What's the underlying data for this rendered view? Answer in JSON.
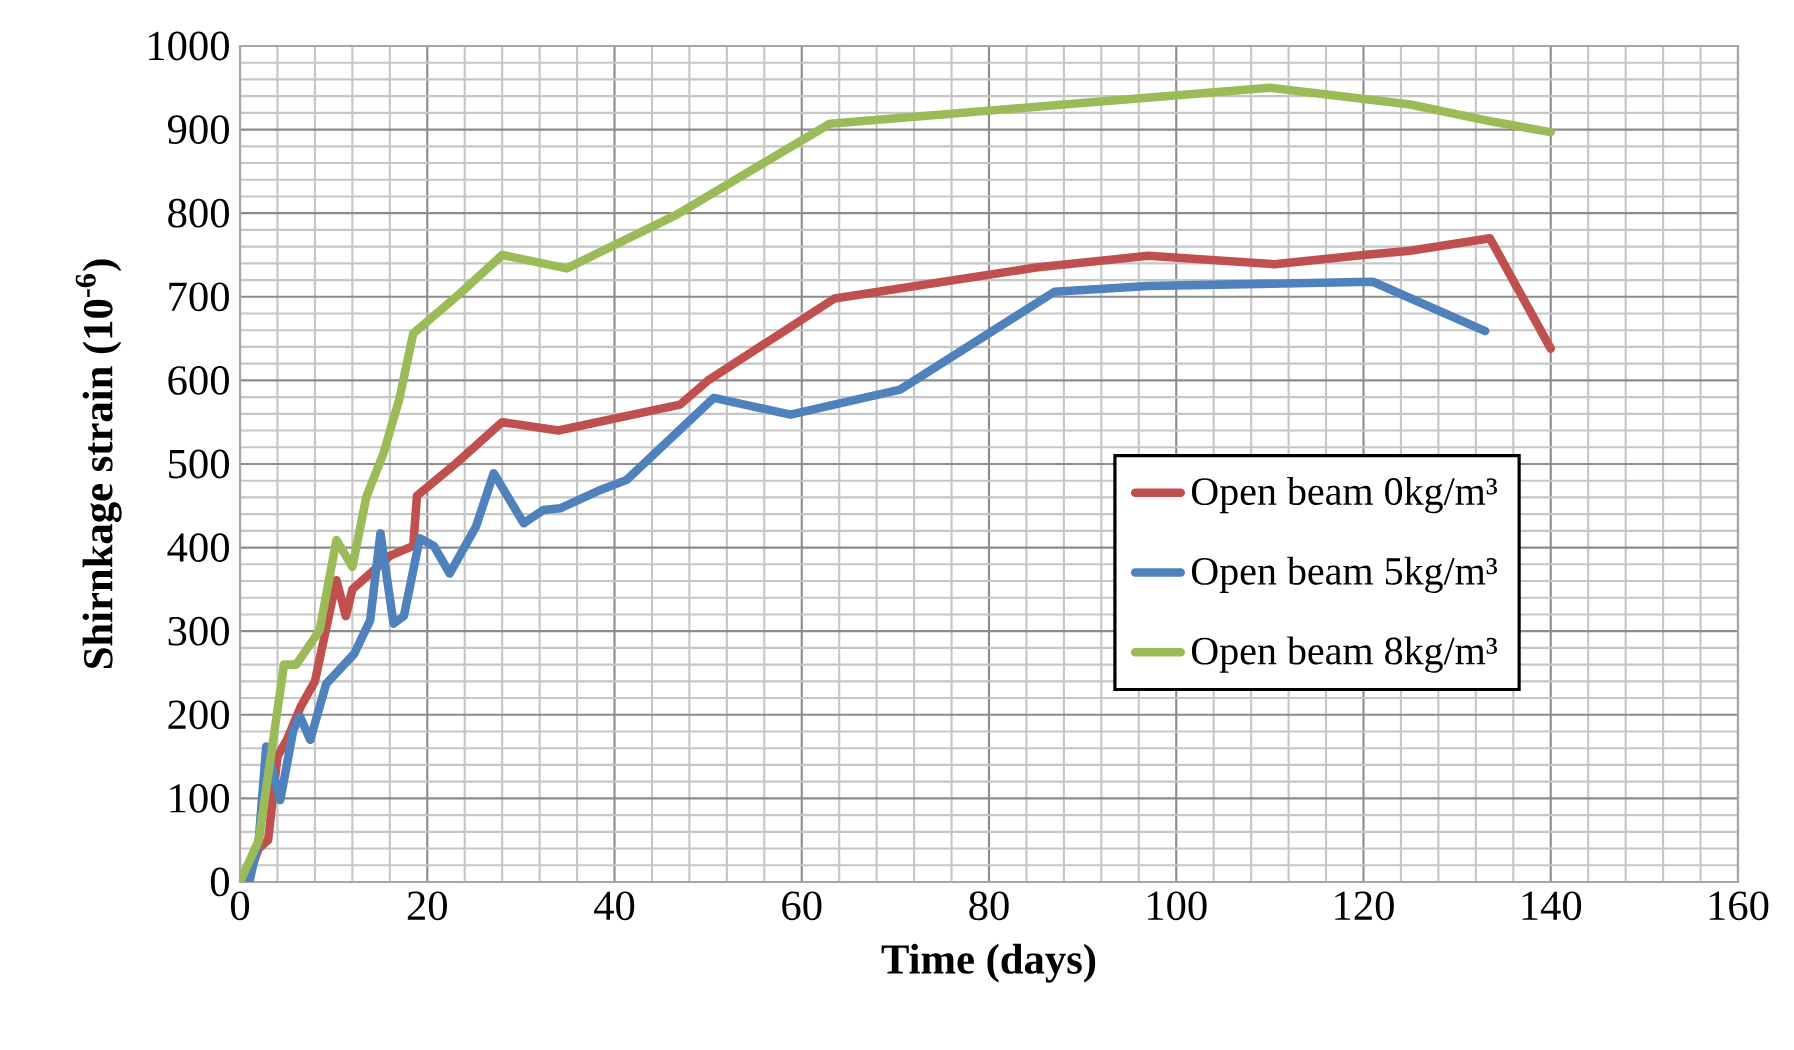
{
  "chart_data": {
    "type": "line",
    "xlabel": "Time (days)",
    "ylabel": "Shirnkage strain (10$^{-6}$)",
    "xlim": [
      0,
      160
    ],
    "xticks": [
      0,
      20,
      40,
      60,
      80,
      100,
      120,
      140,
      160
    ],
    "ylim": [
      0,
      1000
    ],
    "yticks": [
      0,
      100,
      200,
      300,
      400,
      500,
      600,
      700,
      800,
      900,
      1000
    ],
    "grid": true,
    "legend": "right",
    "line_style": "solid",
    "series": [
      {
        "name": "Open beam 0kg/m³",
        "color": "#c0504d",
        "x": [
          0,
          1,
          2,
          3,
          4,
          5,
          6.5,
          8,
          10.3,
          11.3,
          12,
          14,
          16,
          18.5,
          18.9,
          23,
          28,
          34,
          47,
          50,
          63.5,
          85,
          97,
          110.5,
          120,
          125,
          133.5,
          140
        ],
        "values": [
          0,
          10,
          40,
          50,
          150,
          170,
          210,
          240,
          361,
          318,
          350,
          370,
          390,
          402,
          462,
          500,
          550,
          540,
          571,
          600,
          698,
          735,
          749,
          739,
          750,
          755,
          770,
          638
        ]
      },
      {
        "name": "Open beam 5kg/m³",
        "color": "#4f81bd",
        "x": [
          0,
          1,
          2,
          2.8,
          4.3,
          5.7,
          6.4,
          7.5,
          9.2,
          12.2,
          13.9,
          15,
          16.4,
          17.5,
          19.2,
          20.7,
          22.4,
          25.2,
          27.1,
          30.3,
          32.4,
          34.2,
          38.5,
          41.3,
          50.6,
          58.8,
          70.5,
          87,
          97,
          121,
          133
        ],
        "values": [
          0,
          0,
          50,
          162,
          98,
          182,
          198,
          170,
          237,
          273,
          313,
          417,
          309,
          318,
          411,
          402,
          369,
          425,
          489,
          429,
          445,
          447,
          469,
          481,
          579,
          559,
          589,
          706,
          713,
          718,
          659
        ]
      },
      {
        "name": "Open beam 8kg/m³",
        "color": "#9bbb59",
        "x": [
          0,
          2,
          4.7,
          6,
          8.5,
          10.3,
          12,
          13.5,
          15.3,
          17,
          18.5,
          23.5,
          28,
          34.9,
          46.6,
          63,
          88,
          110,
          125,
          134,
          140
        ],
        "values": [
          0,
          50,
          260,
          260,
          301,
          409,
          377,
          461,
          512,
          577,
          656,
          704,
          750,
          734,
          798,
          907,
          930,
          950,
          930,
          909,
          897
        ]
      }
    ]
  }
}
